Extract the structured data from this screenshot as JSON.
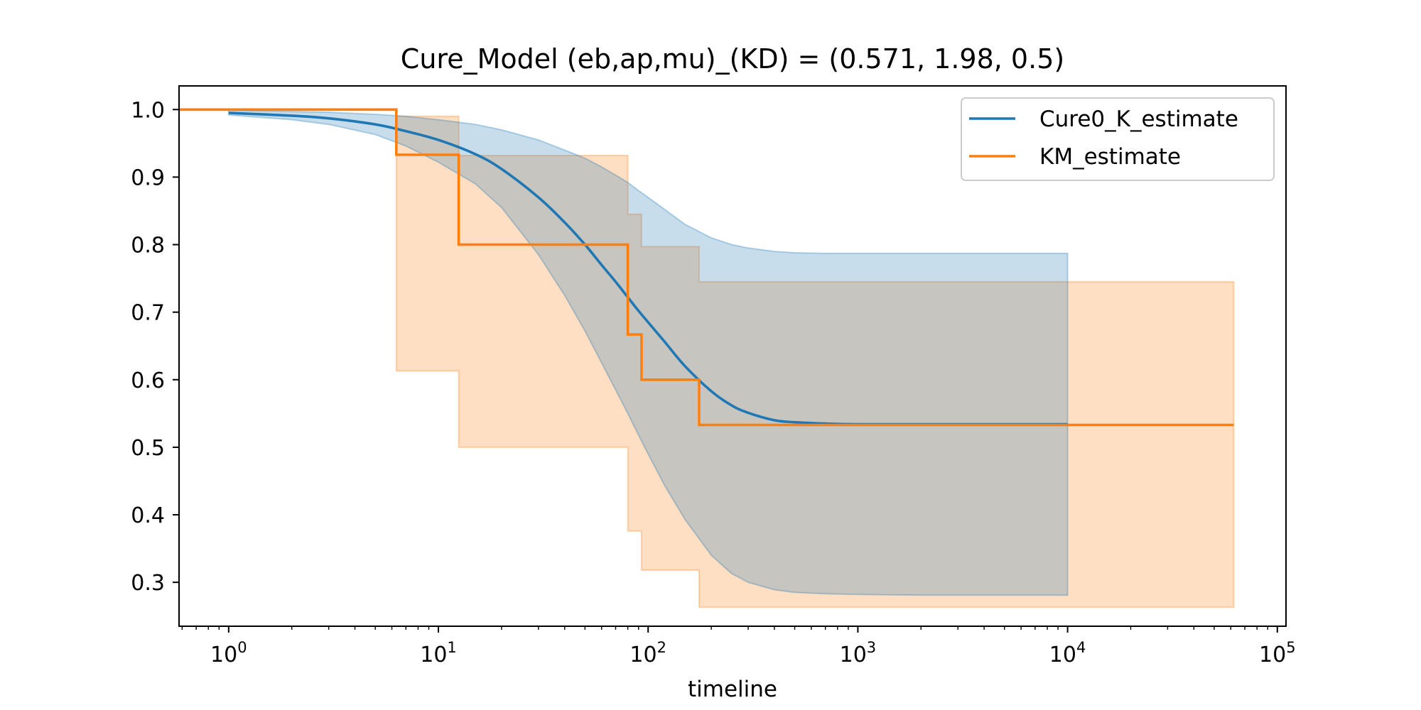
{
  "chart_data": {
    "type": "line",
    "title": "Cure_Model (eb,ap,mu)_(KD) = (0.571, 1.98, 0.5)",
    "xlabel": "timeline",
    "ylabel": "",
    "xscale": "log",
    "xlim": [
      0.58,
      110000
    ],
    "ylim": [
      0.235,
      1.035
    ],
    "x_ticks": [
      {
        "value": 1,
        "base": "10",
        "exp": "0"
      },
      {
        "value": 10,
        "base": "10",
        "exp": "1"
      },
      {
        "value": 100,
        "base": "10",
        "exp": "2"
      },
      {
        "value": 1000,
        "base": "10",
        "exp": "3"
      },
      {
        "value": 10000,
        "base": "10",
        "exp": "4"
      },
      {
        "value": 100000,
        "base": "10",
        "exp": "5"
      }
    ],
    "y_ticks": [
      {
        "value": 1.0,
        "label": "1.0"
      },
      {
        "value": 0.9,
        "label": "0.9"
      },
      {
        "value": 0.8,
        "label": "0.8"
      },
      {
        "value": 0.7,
        "label": "0.7"
      },
      {
        "value": 0.6,
        "label": "0.6"
      },
      {
        "value": 0.5,
        "label": "0.5"
      },
      {
        "value": 0.4,
        "label": "0.4"
      },
      {
        "value": 0.3,
        "label": "0.3"
      }
    ],
    "legend": {
      "position": "top-right"
    },
    "grid": false,
    "series": [
      {
        "name": "Cure0_K_estimate",
        "kind": "smooth",
        "color": "#1f77b4",
        "x": [
          1,
          2,
          3,
          5,
          7,
          10,
          15,
          20,
          30,
          40,
          50,
          60,
          70,
          80,
          90,
          100,
          120,
          150,
          200,
          250,
          300,
          400,
          500,
          700,
          1000,
          2000,
          5000,
          10000
        ],
        "y": [
          0.995,
          0.991,
          0.987,
          0.978,
          0.968,
          0.955,
          0.934,
          0.912,
          0.87,
          0.833,
          0.8,
          0.77,
          0.745,
          0.722,
          0.702,
          0.685,
          0.656,
          0.62,
          0.583,
          0.562,
          0.551,
          0.54,
          0.537,
          0.535,
          0.534,
          0.534,
          0.534,
          0.534
        ],
        "ci_upper": [
          0.999,
          0.997,
          0.996,
          0.993,
          0.99,
          0.985,
          0.978,
          0.97,
          0.955,
          0.94,
          0.928,
          0.915,
          0.903,
          0.892,
          0.88,
          0.87,
          0.852,
          0.83,
          0.81,
          0.8,
          0.795,
          0.79,
          0.788,
          0.787,
          0.787,
          0.787,
          0.787,
          0.787
        ],
        "ci_lower": [
          0.992,
          0.985,
          0.978,
          0.963,
          0.946,
          0.922,
          0.89,
          0.855,
          0.785,
          0.725,
          0.672,
          0.625,
          0.585,
          0.55,
          0.518,
          0.49,
          0.443,
          0.393,
          0.34,
          0.313,
          0.3,
          0.289,
          0.285,
          0.283,
          0.282,
          0.281,
          0.281,
          0.281
        ]
      },
      {
        "name": "KM_estimate",
        "kind": "step",
        "color": "#ff7f0e",
        "steps": [
          {
            "x": 0.58,
            "y": 1.0,
            "ci_lower": 1.0,
            "ci_upper": 1.0
          },
          {
            "x": 6.3,
            "y": 0.933,
            "ci_lower": 0.613,
            "ci_upper": 0.99
          },
          {
            "x": 12.5,
            "y": 0.8,
            "ci_lower": 0.5,
            "ci_upper": 0.932
          },
          {
            "x": 80,
            "y": 0.667,
            "ci_lower": 0.376,
            "ci_upper": 0.845
          },
          {
            "x": 93,
            "y": 0.6,
            "ci_lower": 0.318,
            "ci_upper": 0.797
          },
          {
            "x": 175,
            "y": 0.533,
            "ci_lower": 0.263,
            "ci_upper": 0.745
          }
        ],
        "x_end": 62000,
        "ci_x_end": 62000
      }
    ]
  }
}
